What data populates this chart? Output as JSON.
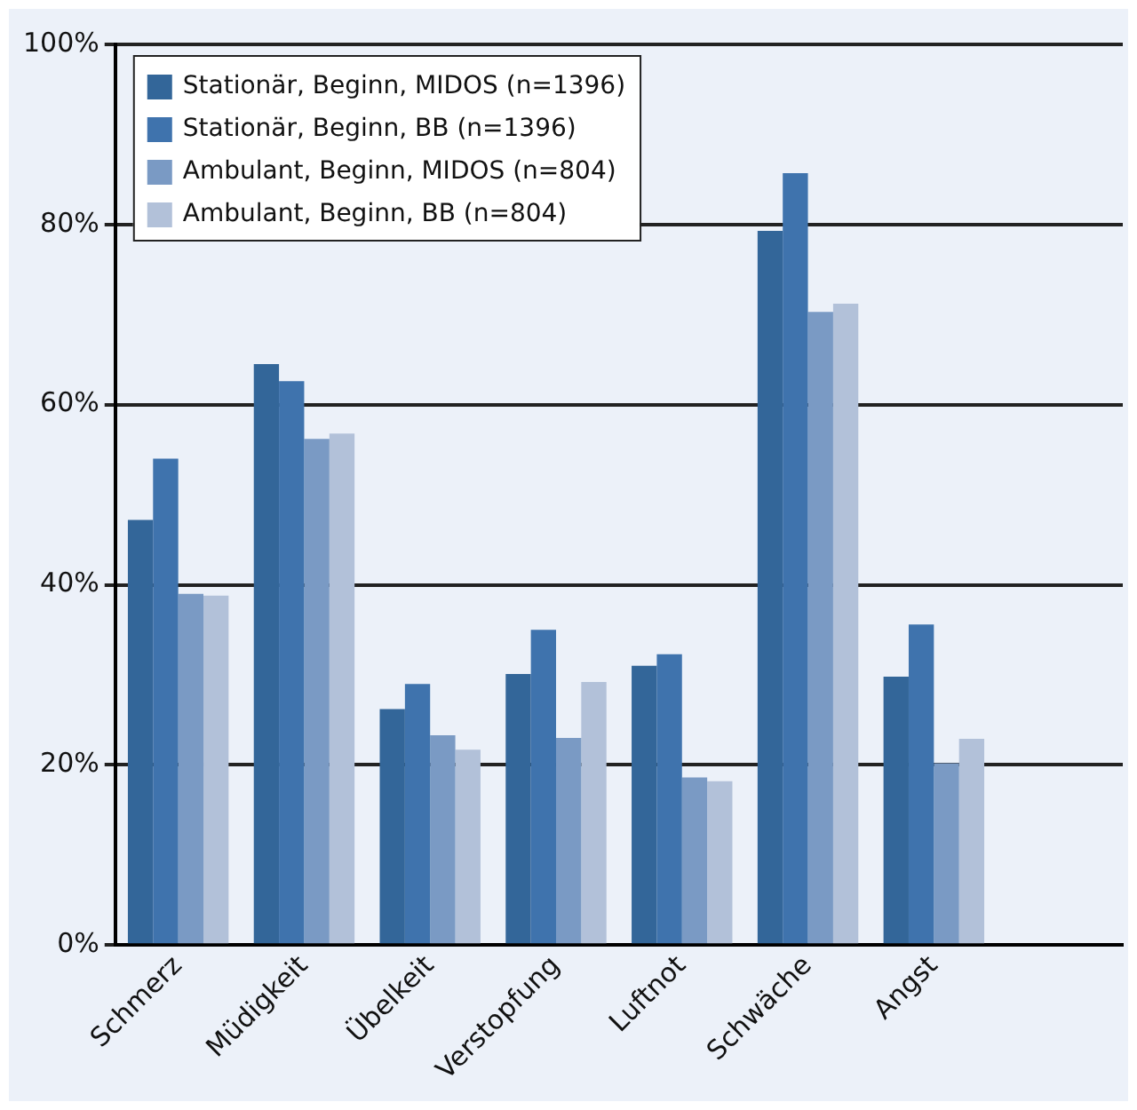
{
  "chart_data": {
    "type": "bar",
    "categories": [
      "Schmerz",
      "Müdigkeit",
      "Übelkeit",
      "Verstopfung",
      "Luftnot",
      "Schwäche",
      "Angst",
      null
    ],
    "series": [
      {
        "name": "Stationär, Beginn, MIDOS (n=1396)",
        "color": "#336699",
        "values": [
          47.2,
          64.5,
          26.2,
          30.1,
          31,
          79.3,
          29.8,
          null
        ]
      },
      {
        "name": "Stationär, Beginn, BB (n=1396)",
        "color": "#3f73ad",
        "values": [
          54,
          62.6,
          29,
          35,
          32.3,
          85.7,
          35.6,
          null
        ]
      },
      {
        "name": "Ambulant, Beginn, MIDOS (n=804)",
        "color": "#7a9ac4",
        "values": [
          39,
          56.2,
          23.3,
          23,
          18.6,
          70.3,
          20.2,
          null
        ]
      },
      {
        "name": "Ambulant, Beginn, BB (n=804)",
        "color": "#b2c1d9",
        "values": [
          38.8,
          56.8,
          21.7,
          29.2,
          18.2,
          71.2,
          22.9,
          null
        ]
      }
    ],
    "ylim": [
      0,
      100
    ],
    "yticks": [
      {
        "value": 0,
        "label": "0%"
      },
      {
        "value": 20,
        "label": "20%"
      },
      {
        "value": 40,
        "label": "40%"
      },
      {
        "value": 60,
        "label": "60%"
      },
      {
        "value": 80,
        "label": "80%"
      },
      {
        "value": 100,
        "label": "100%"
      }
    ],
    "grid": "y",
    "legend": "top left"
  }
}
